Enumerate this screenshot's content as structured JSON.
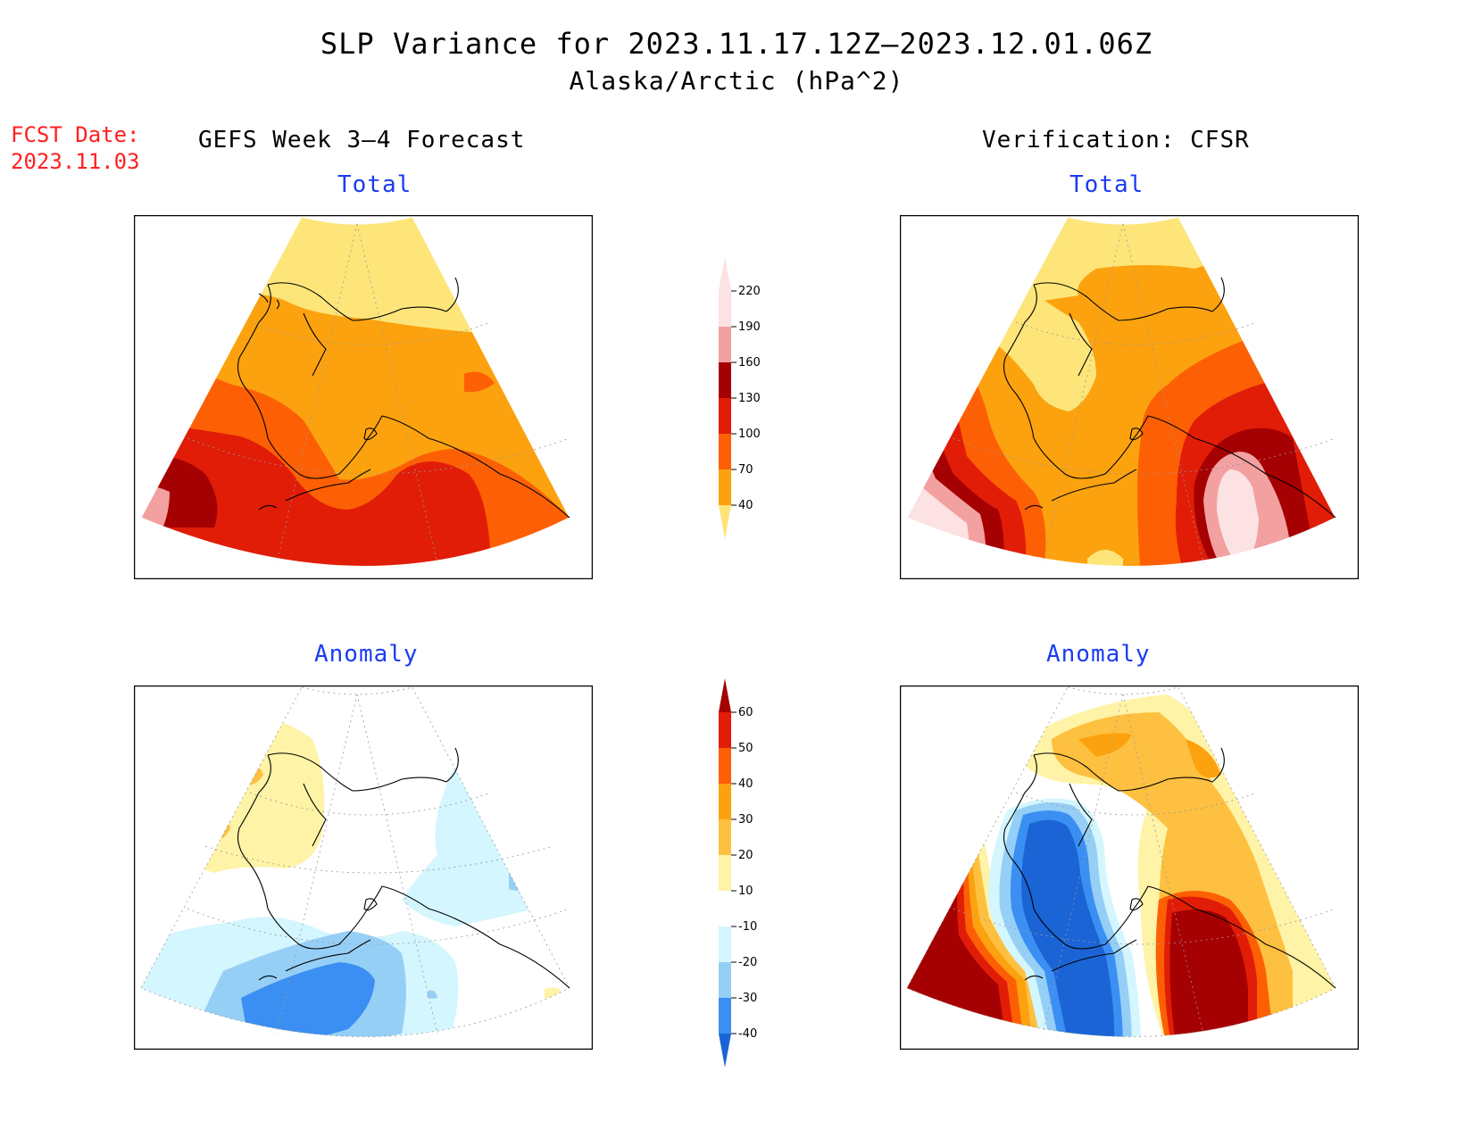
{
  "title": "SLP Variance for 2023.11.17.12Z–2023.12.01.06Z",
  "subtitle": "Alaska/Arctic (hPa^2)",
  "fcst_date_label": "FCST Date:",
  "fcst_date_value": "2023.11.03",
  "left_header": "GEFS Week 3–4 Forecast",
  "right_header": "Verification: CFSR",
  "panel_titles": {
    "top_left": "Total",
    "top_right": "Total",
    "bottom_left": "Anomaly",
    "bottom_right": "Anomaly"
  },
  "chart_data": [
    {
      "type": "heatmap",
      "name": "total_colorbar",
      "levels": [
        40,
        70,
        100,
        130,
        160,
        190,
        220
      ],
      "tick_labels": [
        "40",
        "70",
        "100",
        "130",
        "160",
        "190",
        "220"
      ],
      "colors": [
        "#fde57a",
        "#fca20f",
        "#fd6004",
        "#e11d07",
        "#a50002",
        "#f3a0a0",
        "#fce2e2"
      ]
    },
    {
      "type": "heatmap",
      "name": "anomaly_colorbar",
      "levels": [
        -40,
        -30,
        -20,
        -10,
        10,
        20,
        30,
        40,
        50,
        60
      ],
      "tick_labels": [
        "-40",
        "-30",
        "-20",
        "-10",
        "10",
        "20",
        "30",
        "40",
        "50",
        "60"
      ],
      "colors": [
        "#1a64d6",
        "#3c8ff2",
        "#96cff6",
        "#d4f6fe",
        "#ffffff",
        "#fef3a6",
        "#fdc040",
        "#fca20f",
        "#fd6004",
        "#e11d07",
        "#a50002"
      ]
    }
  ]
}
